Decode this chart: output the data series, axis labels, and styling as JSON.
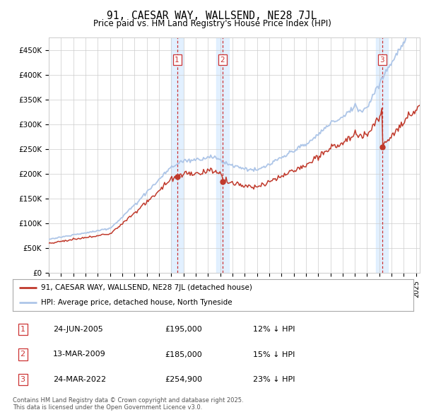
{
  "title": "91, CAESAR WAY, WALLSEND, NE28 7JL",
  "subtitle": "Price paid vs. HM Land Registry's House Price Index (HPI)",
  "ylim": [
    0,
    475000
  ],
  "xlim_start": 1995.0,
  "xlim_end": 2025.3,
  "transaction_dates": [
    2005.48,
    2009.2,
    2022.23
  ],
  "transaction_prices": [
    195000,
    185000,
    254900
  ],
  "transaction_labels": [
    "1",
    "2",
    "3"
  ],
  "legend_label_red": "91, CAESAR WAY, WALLSEND, NE28 7JL (detached house)",
  "legend_label_blue": "HPI: Average price, detached house, North Tyneside",
  "table_rows": [
    [
      "1",
      "24-JUN-2005",
      "£195,000",
      "12% ↓ HPI"
    ],
    [
      "2",
      "13-MAR-2009",
      "£185,000",
      "15% ↓ HPI"
    ],
    [
      "3",
      "24-MAR-2022",
      "£254,900",
      "23% ↓ HPI"
    ]
  ],
  "footer": "Contains HM Land Registry data © Crown copyright and database right 2025.\nThis data is licensed under the Open Government Licence v3.0.",
  "hpi_color": "#aec6e8",
  "price_color": "#c0392b",
  "shade_color": "#ddeeff",
  "background_color": "#ffffff",
  "grid_color": "#cccccc"
}
